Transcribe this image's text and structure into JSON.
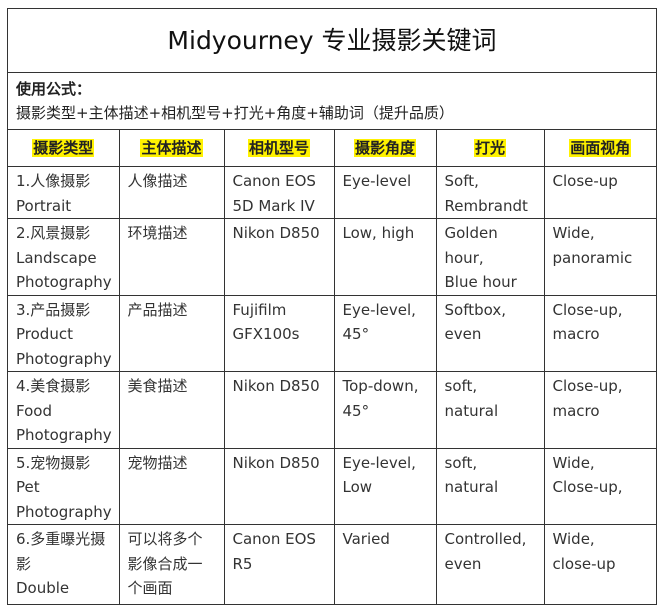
{
  "title": "Midyourney 专业摄影关键词",
  "formula": {
    "label": "使用公式：",
    "text": "摄影类型+主体描述+相机型号+打光+角度+辅助词（提升品质）"
  },
  "headers": [
    "摄影类型",
    "主体描述",
    "相机型号",
    "摄影角度",
    "打光",
    "画面视角"
  ],
  "highlight_color": "#fff200",
  "rows": [
    [
      [
        "1.人像摄影",
        "Portrait"
      ],
      [
        "人像描述"
      ],
      [
        "Canon EOS",
        "5D Mark IV"
      ],
      [
        "Eye-level"
      ],
      [
        "Soft,",
        "Rembrandt"
      ],
      [
        "Close-up"
      ]
    ],
    [
      [
        "2.风景摄影",
        "Landscape",
        "Photography"
      ],
      [
        "环境描述"
      ],
      [
        "Nikon D850"
      ],
      [
        "Low, high"
      ],
      [
        "Golden",
        "hour,",
        "Blue hour"
      ],
      [
        "Wide,",
        "panoramic"
      ]
    ],
    [
      [
        "3.产品摄影",
        "Product",
        "Photography"
      ],
      [
        "产品描述"
      ],
      [
        "Fujifilm",
        "GFX100s"
      ],
      [
        "Eye-level,",
        "45°"
      ],
      [
        "Softbox,",
        "even"
      ],
      [
        "Close-up,",
        "macro"
      ]
    ],
    [
      [
        "4.美食摄影",
        "Food",
        "Photography"
      ],
      [
        "美食描述"
      ],
      [
        "Nikon D850"
      ],
      [
        "Top-down,",
        "45°"
      ],
      [
        "soft, natural"
      ],
      [
        "Close-up,",
        "macro"
      ]
    ],
    [
      [
        "5.宠物摄影",
        "Pet",
        "Photography"
      ],
      [
        "宠物描述"
      ],
      [
        "Nikon D850"
      ],
      [
        "Eye-level,",
        "Low"
      ],
      [
        "soft, natural"
      ],
      [
        "Wide,",
        "Close-up,"
      ]
    ],
    [
      [
        "6.多重曝光摄",
        "影",
        "Double"
      ],
      [
        "可以将多个",
        "影像合成一",
        "个画面"
      ],
      [
        "Canon EOS",
        "R5"
      ],
      [
        "Varied"
      ],
      [
        "Controlled,",
        "even"
      ],
      [
        "Wide,",
        "close-up"
      ]
    ]
  ]
}
